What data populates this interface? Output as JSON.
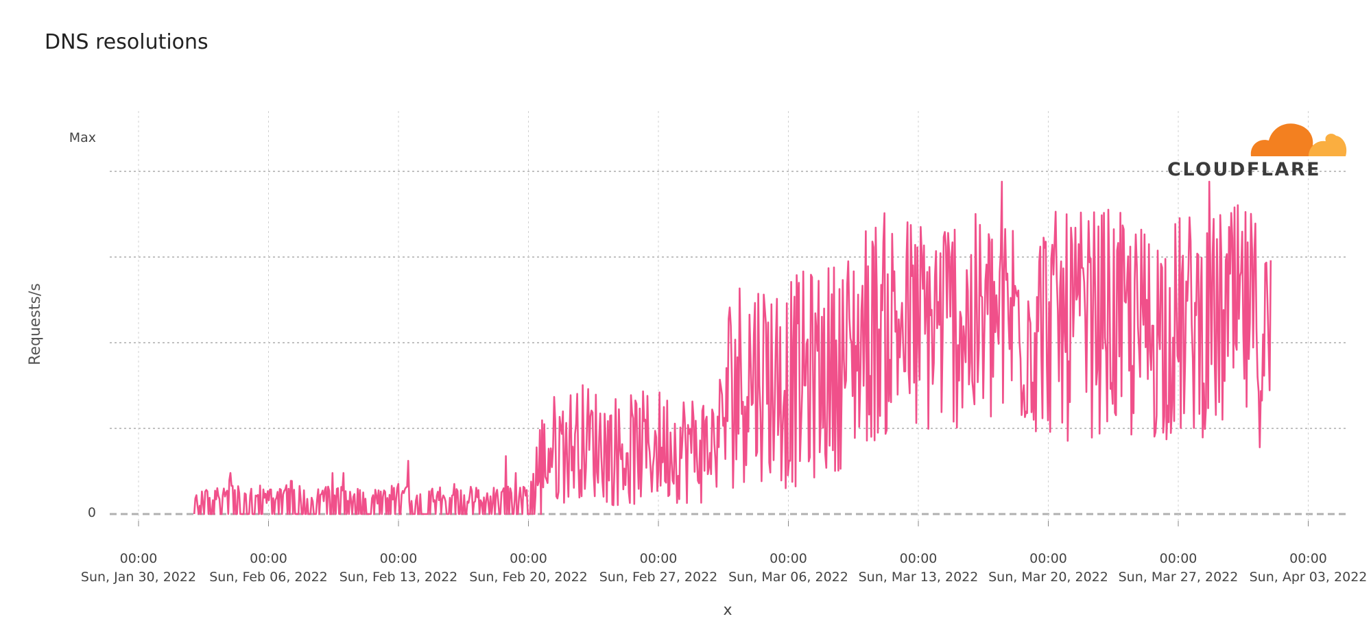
{
  "chart_data": {
    "type": "line",
    "title": "DNS resolutions",
    "xlabel": "x",
    "ylabel": "Requests/s",
    "y_tick_labels": [
      "Max",
      "0"
    ],
    "ylim": [
      0,
      1
    ],
    "x_ticks": [
      {
        "time": "00:00",
        "date": "Sun, Jan 30, 2022"
      },
      {
        "time": "00:00",
        "date": "Sun, Feb 06, 2022"
      },
      {
        "time": "00:00",
        "date": "Sun, Feb 13, 2022"
      },
      {
        "time": "00:00",
        "date": "Sun, Feb 20, 2022"
      },
      {
        "time": "00:00",
        "date": "Sun, Feb 27, 2022"
      },
      {
        "time": "00:00",
        "date": "Sun, Mar 06, 2022"
      },
      {
        "time": "00:00",
        "date": "Sun, Mar 13, 2022"
      },
      {
        "time": "00:00",
        "date": "Sun, Mar 20, 2022"
      },
      {
        "time": "00:00",
        "date": "Sun, Mar 27, 2022"
      },
      {
        "time": "00:00",
        "date": "Sun, Apr 03, 2022"
      }
    ],
    "xlim": [
      "2022-01-29",
      "2022-04-04"
    ],
    "grid": true,
    "series": [
      {
        "color": "#f0508a",
        "points": [
          [
            "2022-02-02",
            0.01
          ],
          [
            "2022-02-03",
            0.04
          ],
          [
            "2022-02-04",
            0.05
          ],
          [
            "2022-02-05",
            0.04
          ],
          [
            "2022-02-06",
            0.03
          ],
          [
            "2022-02-07",
            0.05
          ],
          [
            "2022-02-08",
            0.04
          ],
          [
            "2022-02-09",
            0.03
          ],
          [
            "2022-02-10",
            0.04
          ],
          [
            "2022-02-11",
            0.03
          ],
          [
            "2022-02-12",
            0.03
          ],
          [
            "2022-02-13",
            0.04
          ],
          [
            "2022-02-14",
            0.03
          ],
          [
            "2022-02-15",
            0.03
          ],
          [
            "2022-02-16",
            0.04
          ],
          [
            "2022-02-17",
            0.03
          ],
          [
            "2022-02-18",
            0.03
          ],
          [
            "2022-02-19",
            0.04
          ],
          [
            "2022-02-20",
            0.03
          ],
          [
            "2022-02-21",
            0.18
          ],
          [
            "2022-02-22",
            0.2
          ],
          [
            "2022-02-23",
            0.22
          ],
          [
            "2022-02-24",
            0.2
          ],
          [
            "2022-02-25",
            0.18
          ],
          [
            "2022-02-26",
            0.19
          ],
          [
            "2022-02-27",
            0.2
          ],
          [
            "2022-02-28",
            0.2
          ],
          [
            "2022-03-01",
            0.19
          ],
          [
            "2022-03-02",
            0.2
          ],
          [
            "2022-03-03",
            0.38
          ],
          [
            "2022-03-04",
            0.42
          ],
          [
            "2022-03-05",
            0.4
          ],
          [
            "2022-03-06",
            0.38
          ],
          [
            "2022-03-07",
            0.4
          ],
          [
            "2022-03-08",
            0.42
          ],
          [
            "2022-03-09",
            0.45
          ],
          [
            "2022-03-10",
            0.52
          ],
          [
            "2022-03-11",
            0.55
          ],
          [
            "2022-03-12",
            0.56
          ],
          [
            "2022-03-13",
            0.54
          ],
          [
            "2022-03-14",
            0.56
          ],
          [
            "2022-03-15",
            0.58
          ],
          [
            "2022-03-16",
            0.54
          ],
          [
            "2022-03-17",
            0.56
          ],
          [
            "2022-03-18",
            0.58
          ],
          [
            "2022-03-19",
            0.55
          ],
          [
            "2022-03-20",
            0.56
          ],
          [
            "2022-03-21",
            0.54
          ],
          [
            "2022-03-22",
            0.55
          ],
          [
            "2022-03-23",
            0.57
          ],
          [
            "2022-03-24",
            0.54
          ],
          [
            "2022-03-25",
            0.52
          ],
          [
            "2022-03-26",
            0.55
          ],
          [
            "2022-03-27",
            0.54
          ],
          [
            "2022-03-28",
            0.56
          ],
          [
            "2022-03-29",
            0.55
          ],
          [
            "2022-03-30",
            0.57
          ],
          [
            "2022-03-31",
            0.56
          ],
          [
            "2022-04-01",
            0.48
          ]
        ]
      }
    ]
  },
  "logo": {
    "text": "CLOUDFLARE",
    "cloud_colors": [
      "#f38020",
      "#faae40"
    ]
  }
}
